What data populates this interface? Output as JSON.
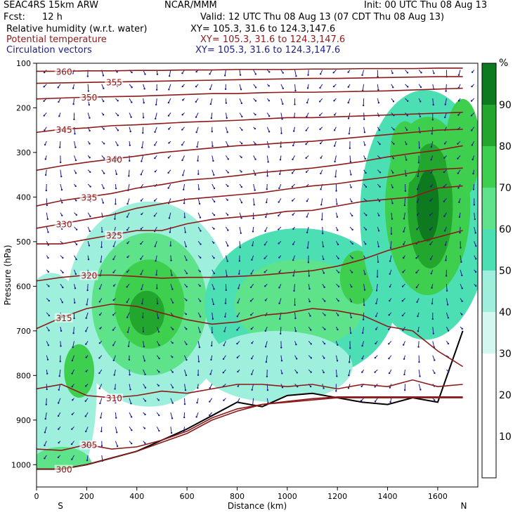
{
  "header": {
    "model": "SEAC4RS 15km ARW",
    "center": "NCAR/MMM",
    "init": "Init: 00 UTC Thu 08 Aug 13",
    "fcst_label": "Fcst:",
    "fcst_value": "12 h",
    "valid": "Valid: 12 UTC Thu 08 Aug 13 (07 CDT Thu 08 Aug 13)",
    "fields": [
      {
        "name": "Relative humidity (w.r.t. water)",
        "xy": "XY= 105.3, 31.6 to 124.3,147.6"
      },
      {
        "name": "Potential temperature",
        "xy": "XY= 105.3, 31.6 to 124.3,147.6"
      },
      {
        "name": "Circulation vectors",
        "xy": "XY= 105.3, 31.6 to 124.3,147.6"
      }
    ]
  },
  "colors": {
    "rh_text": "#000000",
    "theta_line": "#8b1a1a",
    "vector": "#1c1c8c",
    "terrain": "#000000"
  },
  "chart_data": {
    "type": "heatmap",
    "title": "",
    "xlabel": "Distance (km)",
    "ylabel": "Pressure (hPa)",
    "xlim": [
      0,
      1760
    ],
    "ylim": [
      1050,
      100
    ],
    "x_ticks": [
      "0",
      "200",
      "400",
      "600",
      "800",
      "1000",
      "1200",
      "1400",
      "1600"
    ],
    "y_ticks": [
      "100",
      "200",
      "300",
      "400",
      "500",
      "600",
      "700",
      "800",
      "900",
      "1000"
    ],
    "x_end_labels": {
      "left": "S",
      "right": "N"
    },
    "colorbar": {
      "unit": "%",
      "levels": [
        10,
        20,
        30,
        40,
        50,
        60,
        70,
        80,
        90
      ],
      "colors": [
        "#ffffff",
        "#ffffff",
        "#ffffff",
        "#d4f7ef",
        "#9ef0dd",
        "#4ddfb4",
        "#5fe38a",
        "#3fcf4f",
        "#22a62e",
        "#0e7a1f"
      ]
    },
    "rh_regions": [
      {
        "x": 450,
        "p": 640,
        "rx": 330,
        "rp": 230,
        "rh": 45
      },
      {
        "x": 450,
        "p": 640,
        "rx": 230,
        "rp": 160,
        "rh": 60
      },
      {
        "x": 450,
        "p": 640,
        "rx": 140,
        "rp": 100,
        "rh": 75
      },
      {
        "x": 440,
        "p": 660,
        "rx": 70,
        "rp": 50,
        "rh": 85
      },
      {
        "x": 60,
        "p": 830,
        "rx": 180,
        "rp": 260,
        "rh": 40
      },
      {
        "x": 170,
        "p": 790,
        "rx": 60,
        "rp": 60,
        "rh": 70
      },
      {
        "x": 100,
        "p": 1000,
        "rx": 120,
        "rp": 40,
        "rh": 65
      },
      {
        "x": 1050,
        "p": 640,
        "rx": 380,
        "rp": 170,
        "rh": 50
      },
      {
        "x": 1050,
        "p": 640,
        "rx": 260,
        "rp": 100,
        "rh": 65
      },
      {
        "x": 1280,
        "p": 580,
        "rx": 70,
        "rp": 60,
        "rh": 72
      },
      {
        "x": 1550,
        "p": 440,
        "rx": 260,
        "rp": 280,
        "rh": 55
      },
      {
        "x": 1560,
        "p": 420,
        "rx": 170,
        "rp": 200,
        "rh": 70
      },
      {
        "x": 1570,
        "p": 420,
        "rx": 90,
        "rp": 140,
        "rh": 85
      },
      {
        "x": 1560,
        "p": 420,
        "rx": 45,
        "rp": 80,
        "rh": 92
      },
      {
        "x": 1700,
        "p": 290,
        "rx": 70,
        "rp": 110,
        "rh": 75
      },
      {
        "x": 1470,
        "p": 300,
        "rx": 60,
        "rp": 70,
        "rh": 70
      },
      {
        "x": 960,
        "p": 780,
        "rx": 300,
        "rp": 80,
        "rh": 45
      }
    ],
    "theta_contours": [
      {
        "label": "300",
        "p": [
          1010,
          1010,
          1000,
          985,
          970,
          950,
          930,
          900,
          880,
          865,
          860,
          855,
          850,
          850,
          850,
          850,
          850,
          850
        ]
      },
      {
        "label": "305",
        "p": [
          965,
          968,
          955,
          965,
          960,
          945,
          925,
          895,
          875,
          865,
          858,
          852,
          848,
          848,
          848,
          848,
          848,
          848
        ]
      },
      {
        "label": "310",
        "p": [
          830,
          820,
          845,
          850,
          845,
          835,
          840,
          830,
          820,
          820,
          825,
          820,
          830,
          820,
          825,
          810,
          825,
          820
        ]
      },
      {
        "label": "315",
        "p": [
          695,
          670,
          650,
          640,
          645,
          660,
          675,
          685,
          680,
          665,
          660,
          650,
          655,
          665,
          690,
          700,
          745,
          780
        ]
      },
      {
        "label": "320",
        "p": [
          588,
          580,
          575,
          575,
          578,
          582,
          580,
          580,
          578,
          575,
          570,
          565,
          555,
          540,
          520,
          505,
          490,
          475
        ]
      },
      {
        "label": "325",
        "p": [
          505,
          505,
          495,
          485,
          475,
          475,
          460,
          450,
          445,
          440,
          432,
          430,
          420,
          410,
          405,
          400,
          380,
          375
        ]
      },
      {
        "label": "330",
        "p": [
          470,
          460,
          450,
          440,
          425,
          415,
          405,
          400,
          395,
          390,
          382,
          375,
          370,
          362,
          355,
          345,
          338,
          335
        ]
      },
      {
        "label": "335",
        "p": [
          420,
          408,
          400,
          392,
          380,
          372,
          362,
          358,
          352,
          345,
          340,
          335,
          328,
          320,
          310,
          302,
          295,
          285
        ]
      },
      {
        "label": "340",
        "p": [
          340,
          330,
          322,
          315,
          308,
          300,
          295,
          290,
          285,
          282,
          278,
          275,
          270,
          265,
          260,
          255,
          250,
          248
        ]
      },
      {
        "label": "345",
        "p": [
          255,
          248,
          245,
          240,
          238,
          235,
          232,
          230,
          228,
          225,
          222,
          222,
          220,
          218,
          216,
          214,
          212,
          210
        ]
      },
      {
        "label": "350",
        "p": [
          180,
          178,
          176,
          175,
          174,
          172,
          170,
          168,
          168,
          166,
          165,
          165,
          164,
          163,
          162,
          160,
          158,
          156
        ]
      },
      {
        "label": "355",
        "p": [
          145,
          144,
          143,
          142,
          141,
          140,
          139,
          138,
          137,
          136,
          135,
          134,
          134,
          133,
          132,
          131,
          130,
          130
        ]
      },
      {
        "label": "360",
        "p": [
          118,
          118,
          117,
          117,
          116,
          116,
          115,
          115,
          114,
          114,
          114,
          113,
          113,
          112,
          112,
          112,
          111,
          111
        ]
      }
    ],
    "theta_x": [
      0,
      100,
      200,
      300,
      400,
      500,
      600,
      700,
      800,
      900,
      1000,
      1100,
      1200,
      1300,
      1400,
      1500,
      1600,
      1700
    ],
    "terrain_surface_p": [
      1010,
      1010,
      1000,
      985,
      970,
      945,
      920,
      890,
      860,
      870,
      845,
      840,
      850,
      860,
      865,
      850,
      860,
      700
    ]
  }
}
